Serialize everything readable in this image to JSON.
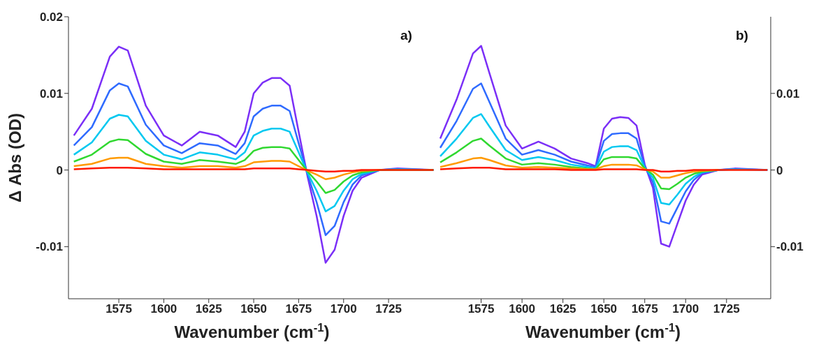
{
  "chart_data": [
    {
      "type": "line",
      "xlabel": "Wavenumber (cm$^{-1}$)",
      "ylabel": "Δ Abs (OD)",
      "annotations": [
        "a)"
      ],
      "marker": "none",
      "line_style": "solid",
      "xlim": [
        1547,
        1751
      ],
      "xticks": [
        1575,
        1600,
        1625,
        1650,
        1675,
        1700,
        1725
      ],
      "ylim": [
        -0.0168,
        0.02
      ],
      "yticks": [
        -0.01,
        0,
        0.01,
        0.02
      ],
      "x": [
        1550,
        1560,
        1570,
        1575,
        1580,
        1590,
        1600,
        1610,
        1620,
        1630,
        1640,
        1645,
        1650,
        1655,
        1660,
        1665,
        1670,
        1675,
        1680,
        1685,
        1690,
        1695,
        1700,
        1705,
        1710,
        1720,
        1730,
        1750
      ],
      "series": [
        {
          "color": "#7b2ff7",
          "values": [
            0.0045,
            0.008,
            0.0148,
            0.0161,
            0.0156,
            0.0084,
            0.0045,
            0.0032,
            0.005,
            0.0045,
            0.003,
            0.005,
            0.01,
            0.0114,
            0.012,
            0.012,
            0.011,
            0.005,
            -0.0009,
            -0.006,
            -0.0121,
            -0.0104,
            -0.006,
            -0.0027,
            -0.001,
            0,
            0.0002,
            0
          ]
        },
        {
          "color": "#2f6bff",
          "values": [
            0.0032,
            0.0056,
            0.0104,
            0.0113,
            0.0109,
            0.0059,
            0.0032,
            0.0022,
            0.0035,
            0.0032,
            0.0021,
            0.0035,
            0.007,
            0.008,
            0.0084,
            0.0084,
            0.0077,
            0.0035,
            -0.0006,
            -0.0042,
            -0.0085,
            -0.0073,
            -0.0042,
            -0.0019,
            -0.0007,
            0,
            0.0001,
            0
          ]
        },
        {
          "color": "#00c8f0",
          "values": [
            0.002,
            0.0036,
            0.0067,
            0.0072,
            0.007,
            0.0038,
            0.002,
            0.0014,
            0.0023,
            0.002,
            0.0014,
            0.0023,
            0.0045,
            0.0051,
            0.0054,
            0.0054,
            0.005,
            0.0023,
            -0.0004,
            -0.0027,
            -0.0054,
            -0.0047,
            -0.0027,
            -0.0012,
            -0.0005,
            0,
            0.0001,
            0
          ]
        },
        {
          "color": "#30d830",
          "values": [
            0.0011,
            0.002,
            0.0037,
            0.004,
            0.0039,
            0.0021,
            0.0011,
            0.0008,
            0.0013,
            0.0011,
            0.0008,
            0.0013,
            0.0025,
            0.0029,
            0.003,
            0.003,
            0.0028,
            0.0013,
            -0.0002,
            -0.0015,
            -0.003,
            -0.0026,
            -0.0015,
            -0.0007,
            -0.0003,
            0,
            0,
            0
          ]
        },
        {
          "color": "#ff9a00",
          "values": [
            0.0005,
            0.0008,
            0.0015,
            0.0016,
            0.0016,
            0.0008,
            0.0005,
            0.0003,
            0.0005,
            0.0005,
            0.0003,
            0.0005,
            0.001,
            0.0011,
            0.0012,
            0.0012,
            0.0011,
            0.0005,
            -0.0001,
            -0.0006,
            -0.0012,
            -0.001,
            -0.0006,
            -0.0003,
            -0.0001,
            0,
            null,
            null
          ]
        },
        {
          "color": "#ff1a00",
          "values": [
            0.0001,
            0.0002,
            0.0003,
            0.0003,
            0.0003,
            0.0002,
            0.0001,
            0.0001,
            0.0001,
            0.0001,
            0.0001,
            0.0001,
            0.0002,
            0.0002,
            0.0002,
            0.0002,
            0.0002,
            0.0001,
            0,
            -0.0001,
            -0.0002,
            -0.0002,
            -0.0001,
            -0.0001,
            0,
            0,
            0,
            0
          ]
        }
      ]
    },
    {
      "type": "line",
      "xlabel": "Wavenumber (cm$^{-1}$)",
      "annotations": [
        "b)"
      ],
      "marker": "none",
      "line_style": "solid",
      "xlim": [
        1547,
        1752
      ],
      "xticks": [
        1575,
        1600,
        1625,
        1650,
        1675,
        1700,
        1725
      ],
      "ylim": [
        -0.0168,
        0.02
      ],
      "yticks": [
        -0.01,
        0,
        0.01
      ],
      "x": [
        1550,
        1560,
        1570,
        1575,
        1580,
        1590,
        1600,
        1610,
        1620,
        1630,
        1640,
        1645,
        1650,
        1655,
        1660,
        1665,
        1670,
        1675,
        1680,
        1685,
        1690,
        1695,
        1700,
        1705,
        1710,
        1720,
        1730,
        1750
      ],
      "series": [
        {
          "color": "#7b2ff7",
          "values": [
            0.0041,
            0.0092,
            0.0152,
            0.0162,
            0.0127,
            0.0058,
            0.0028,
            0.0037,
            0.0028,
            0.0015,
            0.0009,
            0.0005,
            0.0054,
            0.0067,
            0.0069,
            0.0068,
            0.0058,
            0.0007,
            -0.0023,
            -0.0096,
            -0.01,
            -0.007,
            -0.004,
            -0.0019,
            -0.0006,
            0,
            0.0002,
            0
          ]
        },
        {
          "color": "#2f6bff",
          "values": [
            0.0029,
            0.0064,
            0.0106,
            0.0113,
            0.0089,
            0.0041,
            0.002,
            0.0026,
            0.002,
            0.0011,
            0.0006,
            0.0004,
            0.0038,
            0.0047,
            0.0048,
            0.0048,
            0.0041,
            0.0005,
            -0.0016,
            -0.0067,
            -0.007,
            -0.0049,
            -0.0028,
            -0.0013,
            -0.0004,
            0,
            0.0001,
            0
          ]
        },
        {
          "color": "#00c8f0",
          "values": [
            0.0018,
            0.0041,
            0.0068,
            0.0073,
            0.0057,
            0.0026,
            0.0013,
            0.0017,
            0.0013,
            0.0007,
            0.0004,
            0.0002,
            0.0024,
            0.003,
            0.0031,
            0.0031,
            0.0026,
            0.0003,
            -0.001,
            -0.0043,
            -0.0045,
            -0.0032,
            -0.0018,
            -0.0009,
            -0.0003,
            0,
            0.0001,
            0
          ]
        },
        {
          "color": "#30d830",
          "values": [
            0.001,
            0.0023,
            0.0038,
            0.0041,
            0.0032,
            0.0015,
            0.0007,
            0.0009,
            0.0007,
            0.0004,
            0.0002,
            0.0001,
            0.0014,
            0.0017,
            0.0017,
            0.0017,
            0.0015,
            0.0002,
            -0.0006,
            -0.0024,
            -0.0025,
            -0.0018,
            -0.001,
            -0.0005,
            -0.0002,
            0,
            null,
            null
          ]
        },
        {
          "color": "#ff9a00",
          "values": [
            0.0004,
            0.0009,
            0.0015,
            0.0016,
            0.0013,
            0.0006,
            0.0003,
            0.0004,
            0.0003,
            0.0002,
            0.0001,
            0.0001,
            0.0005,
            0.0007,
            0.0007,
            0.0007,
            0.0006,
            0.0001,
            -0.0002,
            -0.001,
            -0.001,
            -0.0007,
            -0.0004,
            -0.0002,
            -0.0001,
            0,
            null,
            null
          ]
        },
        {
          "color": "#ff1a00",
          "values": [
            0.0001,
            0.0002,
            0.0003,
            0.0003,
            0.0003,
            0.0001,
            0.0001,
            0.0001,
            0.0001,
            0,
            0,
            0,
            0.0001,
            0.0001,
            0.0001,
            0.0001,
            0.0001,
            0,
            0,
            -0.0002,
            -0.0002,
            -0.0001,
            -0.0001,
            0,
            0,
            0,
            0,
            0
          ]
        }
      ]
    }
  ]
}
